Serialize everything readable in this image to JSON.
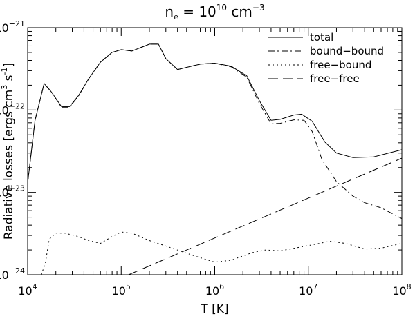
{
  "chart_data": {
    "type": "line",
    "title": {
      "base": "n",
      "sub": "e",
      "eq": " = 10",
      "sup": "10",
      "unit": " cm",
      "unit_sup": "−3"
    },
    "xlabel": "T [K]",
    "ylabel": {
      "pre": "Radiative losses [ergs cm",
      "sup1": "3",
      "mid": " s",
      "sup2": "-1",
      "post": "]"
    },
    "x_scale": "log",
    "y_scale": "log",
    "xlim": [
      10000,
      100000000
    ],
    "ylim": [
      1e-24,
      1e-21
    ],
    "x_ticks": [
      {
        "value": 10000,
        "base": "10",
        "exp": "4"
      },
      {
        "value": 100000,
        "base": "10",
        "exp": "5"
      },
      {
        "value": 1000000,
        "base": "10",
        "exp": "6"
      },
      {
        "value": 10000000,
        "base": "10",
        "exp": "7"
      },
      {
        "value": 100000000,
        "base": "10",
        "exp": "8"
      }
    ],
    "y_ticks": [
      {
        "value": 1e-24,
        "base": "10",
        "exp": "−24"
      },
      {
        "value": 1e-23,
        "base": "10",
        "exp": "−23"
      },
      {
        "value": 1e-22,
        "base": "10",
        "exp": "−22"
      },
      {
        "value": 1e-21,
        "base": "10",
        "exp": "−21"
      }
    ],
    "legend_position": "top-right",
    "grid": false,
    "series": [
      {
        "name": "total",
        "dash": "solid",
        "points": [
          [
            10000,
            1.3e-23
          ],
          [
            12000,
            7.5e-23
          ],
          [
            15000,
            2.1e-22
          ],
          [
            18000,
            1.65e-22
          ],
          [
            23000,
            1.1e-22
          ],
          [
            28000,
            1.1e-22
          ],
          [
            35000,
            1.5e-22
          ],
          [
            45000,
            2.4e-22
          ],
          [
            60000,
            3.8e-22
          ],
          [
            80000,
            5e-22
          ],
          [
            100000,
            5.4e-22
          ],
          [
            130000,
            5.2e-22
          ],
          [
            200000,
            6.3e-22
          ],
          [
            250000,
            6.3e-22
          ],
          [
            300000,
            4.2e-22
          ],
          [
            400000,
            3.1e-22
          ],
          [
            500000,
            3.3e-22
          ],
          [
            700000,
            3.6e-22
          ],
          [
            1000000,
            3.7e-22
          ],
          [
            1500000,
            3.4e-22
          ],
          [
            2200000,
            2.6e-22
          ],
          [
            3000000,
            1.3e-22
          ],
          [
            4000000,
            7.5e-23
          ],
          [
            5000000,
            7.7e-23
          ],
          [
            7000000,
            8.7e-23
          ],
          [
            8500000,
            8.9e-23
          ],
          [
            11000000,
            7.3e-23
          ],
          [
            15000000,
            4.1e-23
          ],
          [
            20000000,
            3e-23
          ],
          [
            30000000,
            2.65e-23
          ],
          [
            50000000,
            2.7e-23
          ],
          [
            100000000,
            3.3e-23
          ]
        ]
      },
      {
        "name": "bound−bound",
        "dash": "dashdot",
        "points": [
          [
            10000,
            1.3e-23
          ],
          [
            12000,
            7.5e-23
          ],
          [
            15000,
            2.1e-22
          ],
          [
            18000,
            1.65e-22
          ],
          [
            23000,
            1.08e-22
          ],
          [
            28000,
            1.08e-22
          ],
          [
            35000,
            1.48e-22
          ],
          [
            45000,
            2.4e-22
          ],
          [
            60000,
            3.8e-22
          ],
          [
            80000,
            5e-22
          ],
          [
            100000,
            5.4e-22
          ],
          [
            130000,
            5.2e-22
          ],
          [
            200000,
            6.3e-22
          ],
          [
            250000,
            6.3e-22
          ],
          [
            300000,
            4.2e-22
          ],
          [
            400000,
            3.1e-22
          ],
          [
            500000,
            3.3e-22
          ],
          [
            700000,
            3.6e-22
          ],
          [
            1000000,
            3.7e-22
          ],
          [
            1500000,
            3.35e-22
          ],
          [
            2200000,
            2.5e-22
          ],
          [
            3000000,
            1.2e-22
          ],
          [
            4000000,
            6.8e-23
          ],
          [
            5000000,
            6.9e-23
          ],
          [
            7000000,
            7.6e-23
          ],
          [
            9000000,
            7.5e-23
          ],
          [
            11000000,
            5.5e-23
          ],
          [
            14000000,
            2.5e-23
          ],
          [
            20000000,
            1.35e-23
          ],
          [
            30000000,
            9e-24
          ],
          [
            40000000,
            7.5e-24
          ],
          [
            60000000,
            6.5e-24
          ],
          [
            100000000,
            4.8e-24
          ]
        ]
      },
      {
        "name": "free−bound",
        "dash": "dotted",
        "points": [
          [
            14000,
            1e-24
          ],
          [
            15500,
            1.4e-24
          ],
          [
            17000,
            2.7e-24
          ],
          [
            20000,
            3.2e-24
          ],
          [
            25000,
            3.2e-24
          ],
          [
            35000,
            2.9e-24
          ],
          [
            45000,
            2.6e-24
          ],
          [
            60000,
            2.4e-24
          ],
          [
            80000,
            2.9e-24
          ],
          [
            100000,
            3.3e-24
          ],
          [
            130000,
            3.2e-24
          ],
          [
            200000,
            2.6e-24
          ],
          [
            350000,
            2.1e-24
          ],
          [
            600000,
            1.7e-24
          ],
          [
            1000000,
            1.42e-24
          ],
          [
            1500000,
            1.5e-24
          ],
          [
            2500000,
            1.85e-24
          ],
          [
            3500000,
            2e-24
          ],
          [
            5000000,
            1.95e-24
          ],
          [
            8000000,
            2.15e-24
          ],
          [
            12000000,
            2.35e-24
          ],
          [
            17000000,
            2.55e-24
          ],
          [
            25000000,
            2.4e-24
          ],
          [
            40000000,
            2.05e-24
          ],
          [
            60000000,
            2.1e-24
          ],
          [
            100000000,
            2.4e-24
          ]
        ]
      },
      {
        "name": "free−free",
        "dash": "longdash",
        "points": [
          [
            120000,
            1e-24
          ],
          [
            100000000,
            2.6e-23
          ]
        ]
      }
    ]
  }
}
